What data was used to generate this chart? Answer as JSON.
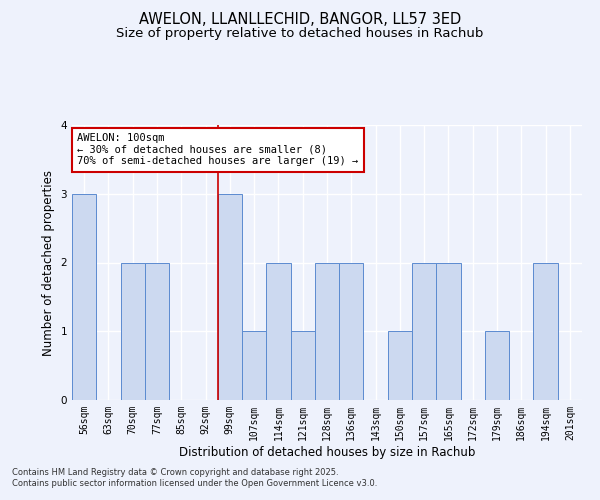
{
  "title_line1": "AWELON, LLANLLECHID, BANGOR, LL57 3ED",
  "title_line2": "Size of property relative to detached houses in Rachub",
  "xlabel": "Distribution of detached houses by size in Rachub",
  "ylabel": "Number of detached properties",
  "categories": [
    "56sqm",
    "63sqm",
    "70sqm",
    "77sqm",
    "85sqm",
    "92sqm",
    "99sqm",
    "107sqm",
    "114sqm",
    "121sqm",
    "128sqm",
    "136sqm",
    "143sqm",
    "150sqm",
    "157sqm",
    "165sqm",
    "172sqm",
    "179sqm",
    "186sqm",
    "194sqm",
    "201sqm"
  ],
  "values": [
    3,
    0,
    2,
    2,
    0,
    0,
    3,
    1,
    2,
    1,
    2,
    2,
    0,
    1,
    2,
    2,
    0,
    1,
    0,
    2,
    0
  ],
  "bar_color": "#ccd9f0",
  "bar_edge_color": "#5b8bd0",
  "highlight_index": 6,
  "highlight_line_color": "#cc0000",
  "annotation_text": "AWELON: 100sqm\n← 30% of detached houses are smaller (8)\n70% of semi-detached houses are larger (19) →",
  "annotation_box_color": "#ffffff",
  "annotation_box_edge_color": "#cc0000",
  "ylim": [
    0,
    4
  ],
  "yticks": [
    0,
    1,
    2,
    3,
    4
  ],
  "background_color": "#eef2fc",
  "grid_color": "#ffffff",
  "footer_text": "Contains HM Land Registry data © Crown copyright and database right 2025.\nContains public sector information licensed under the Open Government Licence v3.0.",
  "title_fontsize": 10.5,
  "subtitle_fontsize": 9.5,
  "axis_label_fontsize": 8.5,
  "tick_fontsize": 7,
  "annotation_fontsize": 7.5,
  "footer_fontsize": 6
}
